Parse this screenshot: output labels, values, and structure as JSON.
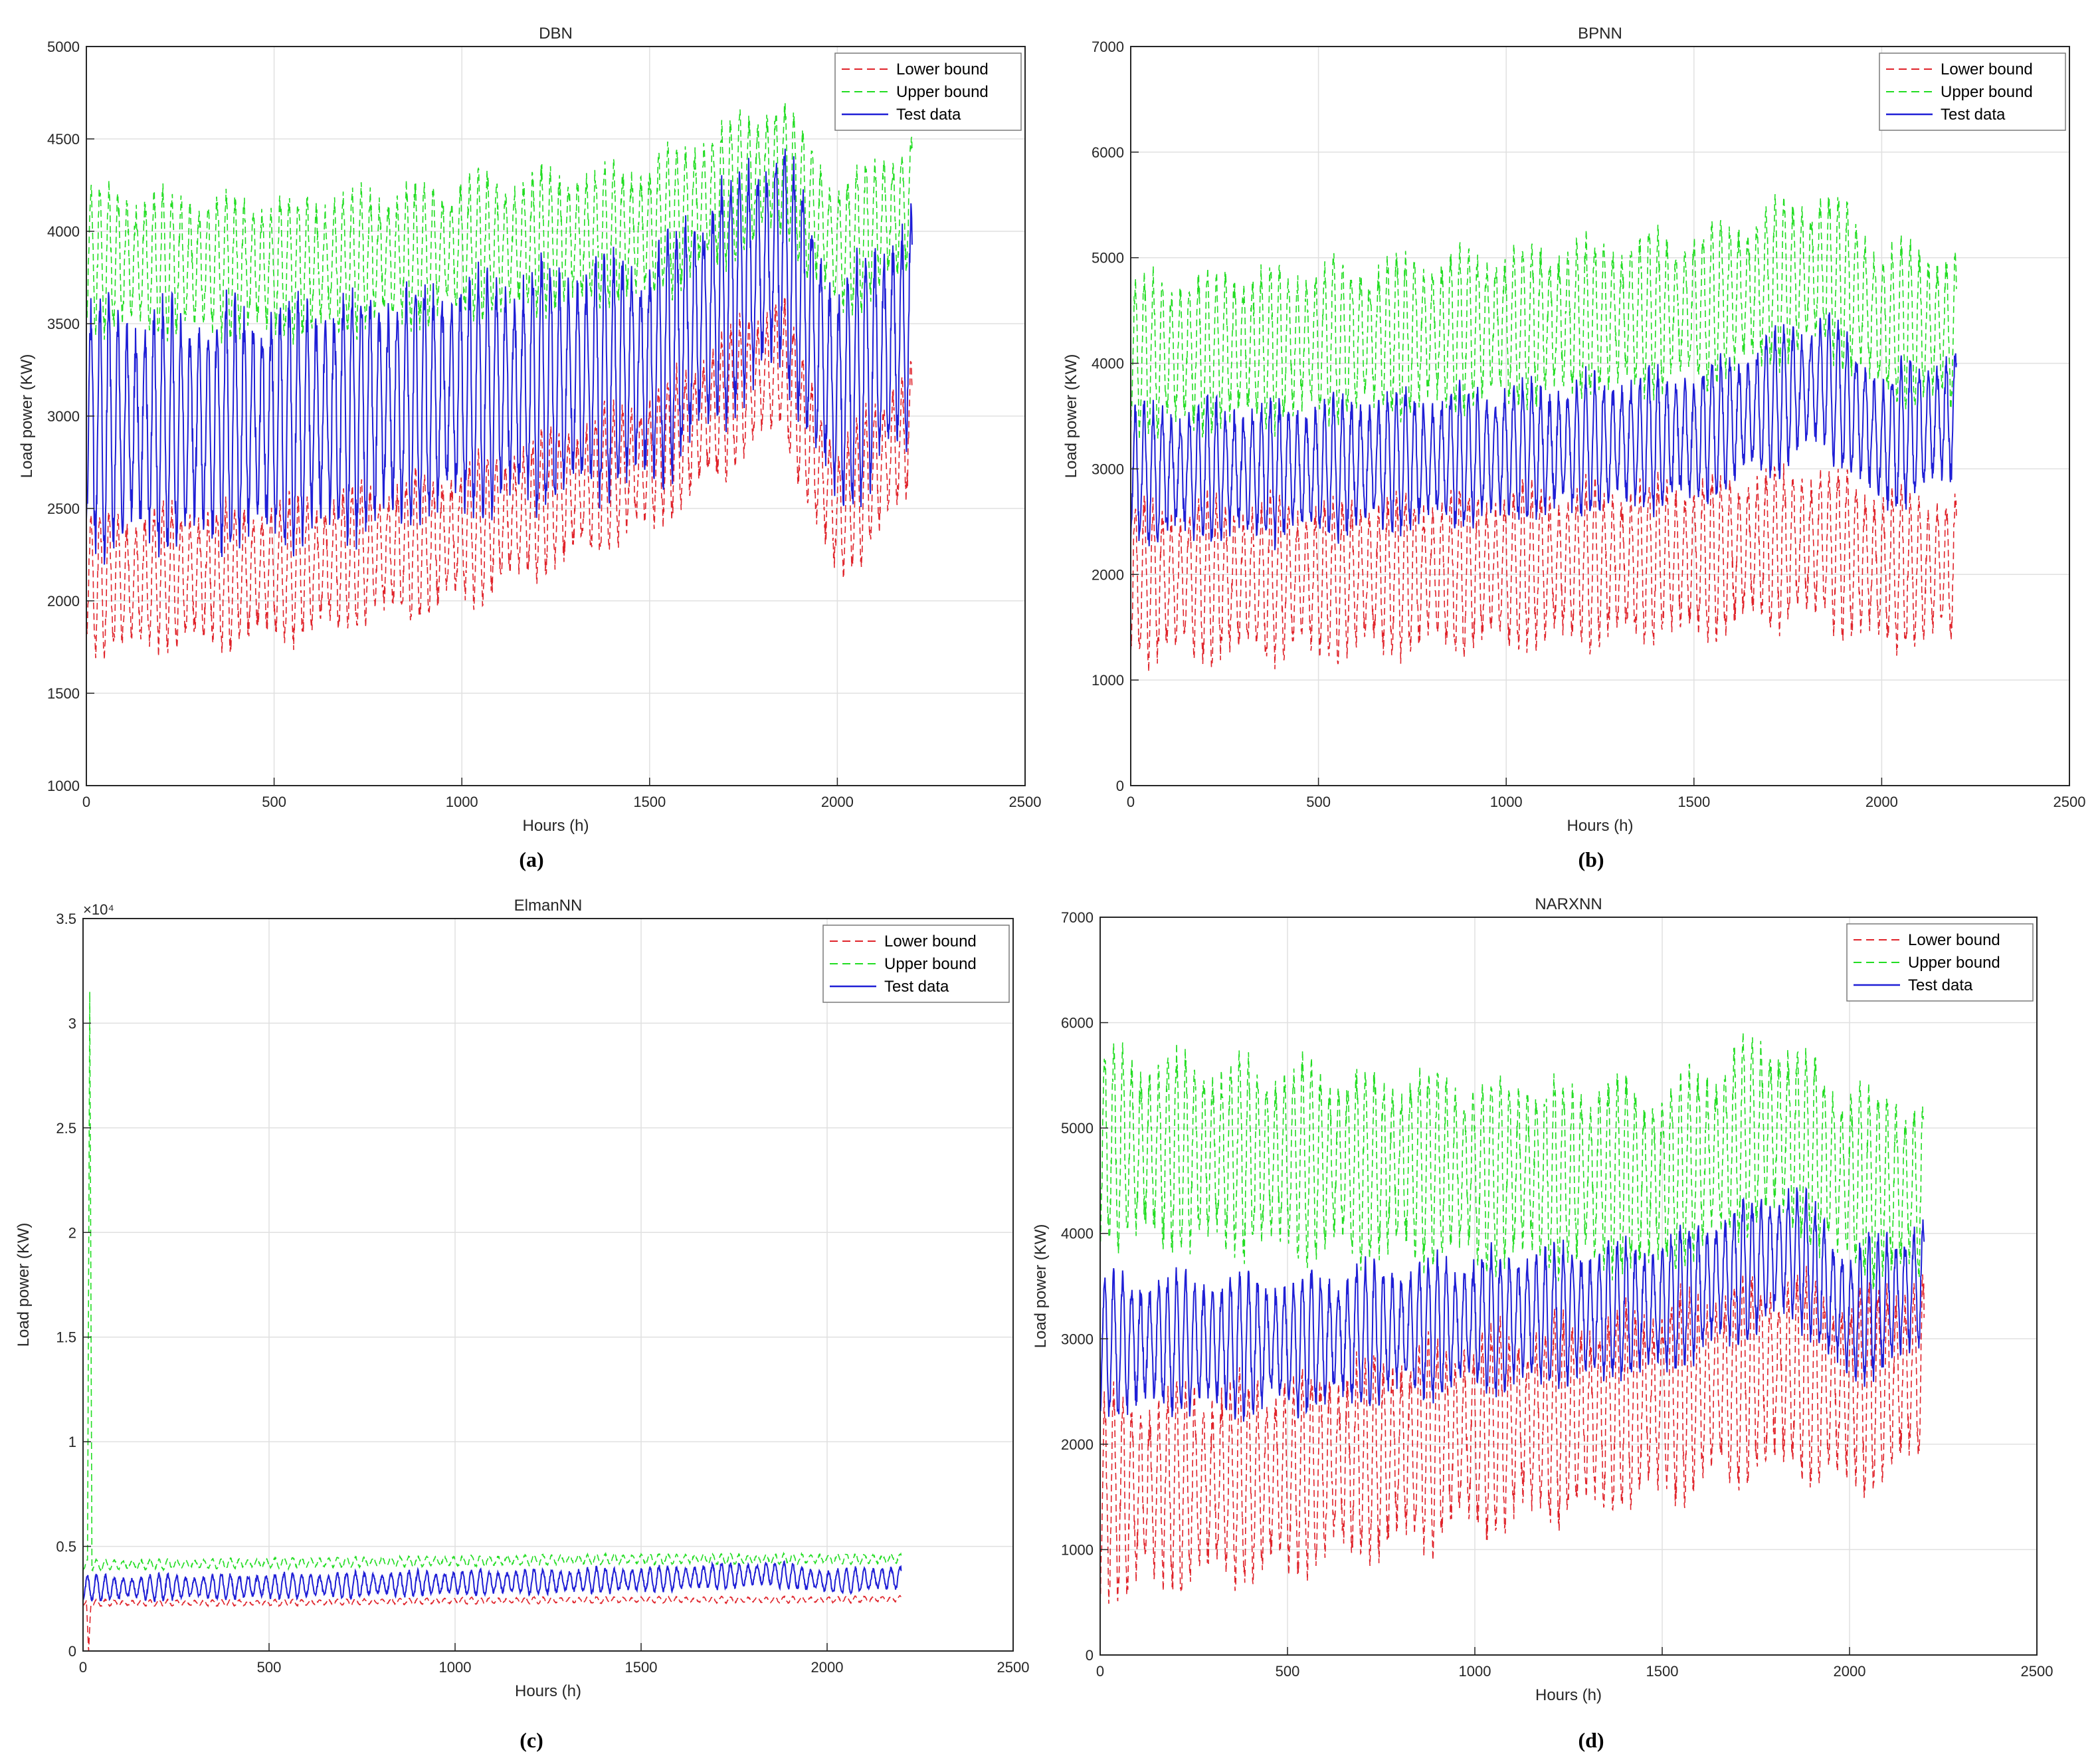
{
  "figure": {
    "captions": [
      "(a)",
      "(b)",
      "(c)",
      "(d)"
    ]
  },
  "colors": {
    "lower": "#e0232a",
    "upper": "#22dd22",
    "test": "#1f1fd6",
    "grid": "#e0e0e0",
    "axis": "#262626"
  },
  "chart_data": [
    {
      "type": "line",
      "title": "DBN",
      "xlabel": "Hours (h)",
      "ylabel": "Load power (KW)",
      "xlim": [
        0,
        2500
      ],
      "ylim": [
        1000,
        5000
      ],
      "xticks": [
        0,
        500,
        1000,
        1500,
        2000,
        2500
      ],
      "yticks": [
        1000,
        1500,
        2000,
        2500,
        3000,
        3500,
        4000,
        4500,
        5000
      ],
      "exponent_label": "",
      "legend": [
        "Lower bound",
        "Upper bound",
        "Test data"
      ],
      "legend_position": "top-right",
      "grid": true,
      "n_points": 2200,
      "series": [
        {
          "name": "Lower bound",
          "style": "dashed",
          "baseline": [
            [
              0,
              2100
            ],
            [
              500,
              2150
            ],
            [
              1000,
              2350
            ],
            [
              1500,
              2750
            ],
            [
              1850,
              3300
            ],
            [
              2000,
              2450
            ],
            [
              2200,
              2950
            ]
          ],
          "amplitude": 380
        },
        {
          "name": "Upper bound",
          "style": "dashed",
          "baseline": [
            [
              0,
              3850
            ],
            [
              500,
              3800
            ],
            [
              1000,
              3900
            ],
            [
              1500,
              4000
            ],
            [
              1850,
              4350
            ],
            [
              2000,
              3900
            ],
            [
              2200,
              4150
            ]
          ],
          "amplitude": 380
        },
        {
          "name": "Test data",
          "style": "solid",
          "baseline": [
            [
              0,
              2950
            ],
            [
              500,
              2950
            ],
            [
              1000,
              3100
            ],
            [
              1500,
              3250
            ],
            [
              1850,
              3900
            ],
            [
              2000,
              3100
            ],
            [
              2200,
              3500
            ]
          ],
          "amplitude": 650
        }
      ]
    },
    {
      "type": "line",
      "title": "BPNN",
      "xlabel": "Hours (h)",
      "ylabel": "Load power (KW)",
      "xlim": [
        0,
        2500
      ],
      "ylim": [
        0,
        7000
      ],
      "xticks": [
        0,
        500,
        1000,
        1500,
        2000,
        2500
      ],
      "yticks": [
        0,
        1000,
        2000,
        3000,
        4000,
        5000,
        6000,
        7000
      ],
      "exponent_label": "",
      "legend": [
        "Lower bound",
        "Upper bound",
        "Test data"
      ],
      "legend_position": "top-right",
      "grid": true,
      "n_points": 2200,
      "series": [
        {
          "name": "Lower bound",
          "style": "dashed",
          "baseline": [
            [
              0,
              1950
            ],
            [
              500,
              1950
            ],
            [
              1000,
              2050
            ],
            [
              1500,
              2150
            ],
            [
              1850,
              2300
            ],
            [
              2000,
              2050
            ],
            [
              2200,
              2050
            ]
          ],
          "amplitude": 750
        },
        {
          "name": "Upper bound",
          "style": "dashed",
          "baseline": [
            [
              0,
              4050
            ],
            [
              500,
              4200
            ],
            [
              1000,
              4350
            ],
            [
              1500,
              4500
            ],
            [
              1850,
              4900
            ],
            [
              2000,
              4400
            ],
            [
              2200,
              4300
            ]
          ],
          "amplitude": 750
        },
        {
          "name": "Test data",
          "style": "solid",
          "baseline": [
            [
              0,
              2950
            ],
            [
              500,
              3000
            ],
            [
              1000,
              3150
            ],
            [
              1500,
              3300
            ],
            [
              1850,
              3850
            ],
            [
              2000,
              3250
            ],
            [
              2200,
              3500
            ]
          ],
          "amplitude": 650
        }
      ]
    },
    {
      "type": "line",
      "title": "ElmanNN",
      "xlabel": "Hours (h)",
      "ylabel": "Load power (KW)",
      "xlim": [
        0,
        2500
      ],
      "ylim": [
        0,
        35000
      ],
      "xticks": [
        0,
        500,
        1000,
        1500,
        2000,
        2500
      ],
      "yticks": [
        0,
        5000,
        10000,
        15000,
        20000,
        25000,
        30000,
        35000
      ],
      "ytick_labels": [
        "0",
        "0.5",
        "1",
        "1.5",
        "2",
        "2.5",
        "3",
        "3.5"
      ],
      "exponent_label": "×10⁴",
      "legend": [
        "Lower bound",
        "Upper bound",
        "Test data"
      ],
      "legend_position": "top-right",
      "grid": true,
      "n_points": 2200,
      "series": [
        {
          "name": "Lower bound",
          "style": "dashed",
          "baseline": [
            [
              0,
              2300
            ],
            [
              500,
              2300
            ],
            [
              1000,
              2400
            ],
            [
              1500,
              2450
            ],
            [
              2000,
              2450
            ],
            [
              2200,
              2500
            ]
          ],
          "amplitude": 150,
          "spike": {
            "x": 15,
            "value": 0
          }
        },
        {
          "name": "Upper bound",
          "style": "dashed",
          "baseline": [
            [
              0,
              4100
            ],
            [
              500,
              4200
            ],
            [
              1000,
              4300
            ],
            [
              1500,
              4400
            ],
            [
              2000,
              4400
            ],
            [
              2200,
              4400
            ]
          ],
          "amplitude": 250,
          "spike": {
            "x": 18,
            "value": 31500
          }
        },
        {
          "name": "Test data",
          "style": "solid",
          "baseline": [
            [
              0,
              3000
            ],
            [
              500,
              3100
            ],
            [
              1000,
              3250
            ],
            [
              1500,
              3400
            ],
            [
              1850,
              3700
            ],
            [
              2000,
              3300
            ],
            [
              2200,
              3500
            ]
          ],
          "amplitude": 600
        }
      ]
    },
    {
      "type": "line",
      "title": "NARXNN",
      "xlabel": "Hours (h)",
      "ylabel": "Load power (KW)",
      "xlim": [
        0,
        2500
      ],
      "ylim": [
        0,
        7000
      ],
      "xticks": [
        0,
        500,
        1000,
        1500,
        2000,
        2500
      ],
      "yticks": [
        0,
        1000,
        2000,
        3000,
        4000,
        5000,
        6000,
        7000
      ],
      "exponent_label": "",
      "legend": [
        "Lower bound",
        "Upper bound",
        "Test data"
      ],
      "legend_position": "top-right",
      "grid": true,
      "n_points": 2200,
      "series": [
        {
          "name": "Lower bound",
          "style": "dashed",
          "baseline": [
            [
              0,
              1500
            ],
            [
              500,
              1700
            ],
            [
              1000,
              2100
            ],
            [
              1500,
              2400
            ],
            [
              1800,
              2700
            ],
            [
              2000,
              2500
            ],
            [
              2200,
              2700
            ]
          ],
          "amplitude": 950
        },
        {
          "name": "Upper bound",
          "style": "dashed",
          "baseline": [
            [
              0,
              4800
            ],
            [
              500,
              4700
            ],
            [
              1000,
              4600
            ],
            [
              1500,
              4500
            ],
            [
              1800,
              5000
            ],
            [
              2000,
              4500
            ],
            [
              2200,
              4400
            ]
          ],
          "amplitude": 900
        },
        {
          "name": "Test data",
          "style": "solid",
          "baseline": [
            [
              0,
              2950
            ],
            [
              500,
              2950
            ],
            [
              1000,
              3150
            ],
            [
              1500,
              3300
            ],
            [
              1850,
              3850
            ],
            [
              2000,
              3200
            ],
            [
              2200,
              3500
            ]
          ],
          "amplitude": 650
        }
      ]
    }
  ]
}
